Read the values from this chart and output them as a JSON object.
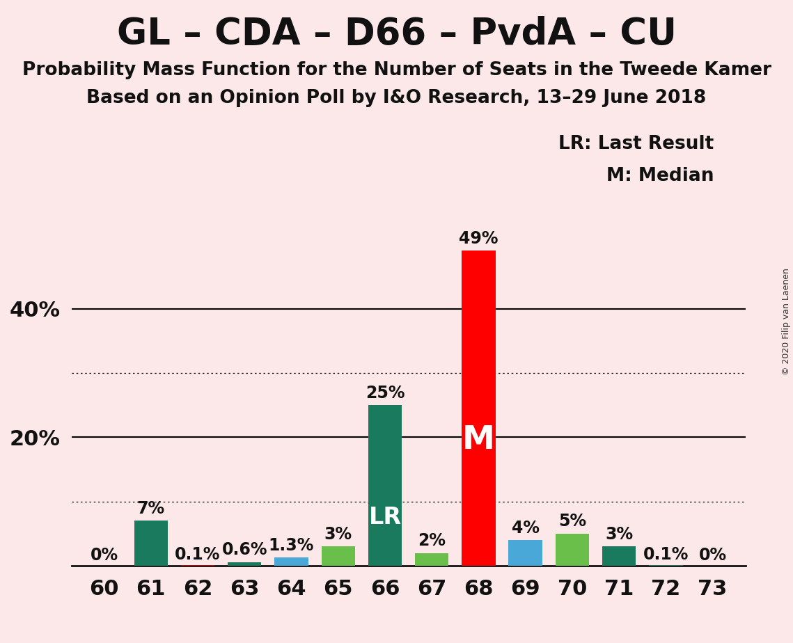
{
  "title": "GL – CDA – D66 – PvdA – CU",
  "subtitle1": "Probability Mass Function for the Number of Seats in the Tweede Kamer",
  "subtitle2": "Based on an Opinion Poll by I&O Research, 13–29 June 2018",
  "copyright": "© 2020 Filip van Laenen",
  "seats": [
    60,
    61,
    62,
    63,
    64,
    65,
    66,
    67,
    68,
    69,
    70,
    71,
    72,
    73
  ],
  "probabilities": [
    0.0,
    7.0,
    0.1,
    0.6,
    1.3,
    3.0,
    25.0,
    2.0,
    49.0,
    4.0,
    5.0,
    3.0,
    0.1,
    0.0
  ],
  "bar_colors": [
    "#1a7a5e",
    "#1a7a5e",
    "#cc0000",
    "#1a7a5e",
    "#4aa8d8",
    "#6abf4b",
    "#1a7a5e",
    "#6abf4b",
    "#ff0000",
    "#4aa8d8",
    "#6abf4b",
    "#1a7a5e",
    "#1a7a5e",
    "#1a7a5e"
  ],
  "labels": [
    "0%",
    "7%",
    "0.1%",
    "0.6%",
    "1.3%",
    "3%",
    "25%",
    "2%",
    "49%",
    "4%",
    "5%",
    "3%",
    "0.1%",
    "0%"
  ],
  "lr_seat": 66,
  "median_seat": 68,
  "lr_label": "LR",
  "median_label": "M",
  "legend_lr": "LR: Last Result",
  "legend_m": "M: Median",
  "background_color": "#fce8e8",
  "ylim_max": 55,
  "dotted_grid": [
    10,
    30
  ],
  "solid_grid": [
    20,
    40
  ],
  "ytick_positions": [
    20,
    40
  ],
  "ytick_labels": [
    "20%",
    "40%"
  ],
  "title_fontsize": 38,
  "subtitle_fontsize": 19,
  "label_fontsize": 17,
  "tick_fontsize": 22,
  "legend_fontsize": 19,
  "lr_fontsize": 24,
  "m_fontsize": 34
}
